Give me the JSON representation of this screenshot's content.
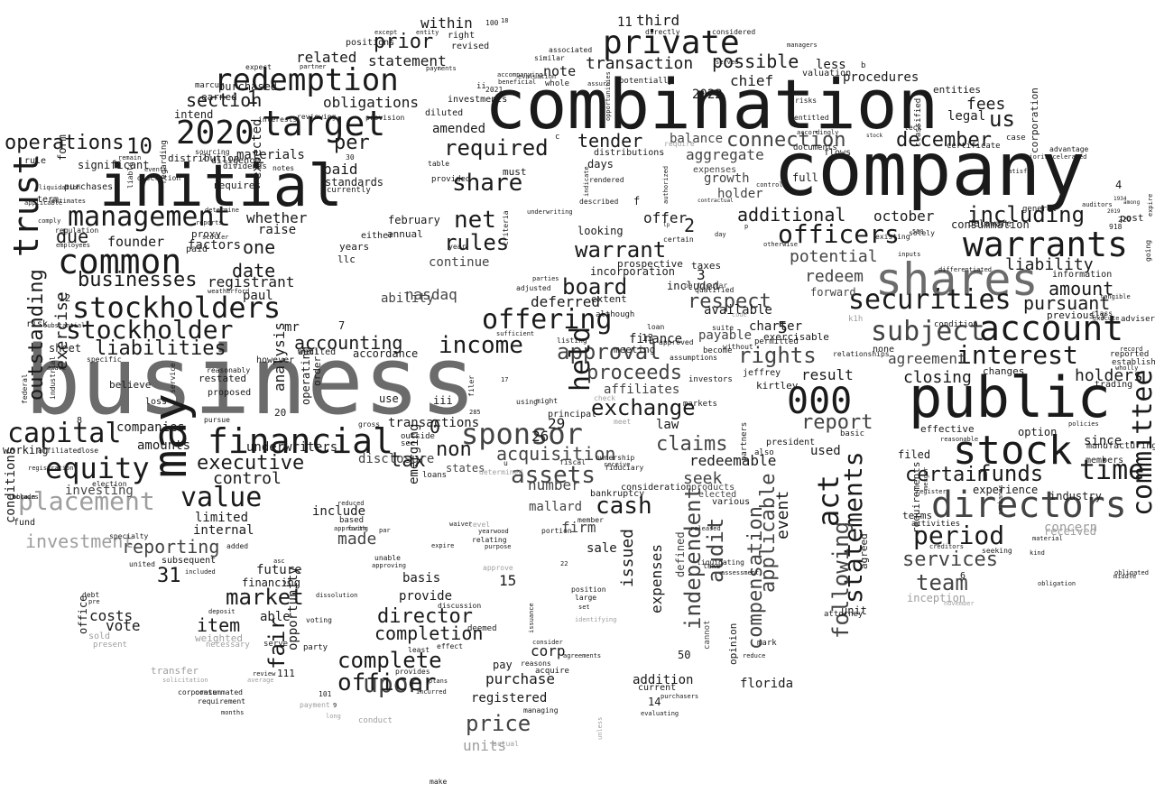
{
  "palette": {
    "black": "#1a1a1a",
    "dark": "#444444",
    "mid": "#6b6b6b",
    "light": "#9e9e9e",
    "pale": "#c4c4c4"
  },
  "words": [
    "combination",
    "company",
    "business",
    "public",
    "initial",
    "shares",
    "warrants",
    "stock",
    "directors",
    "may",
    "private",
    "trust",
    "account",
    "redemption",
    "target",
    "2020",
    "common",
    "financial",
    "management",
    "stockholders",
    "offering",
    "securities",
    "sponsor",
    "000",
    "officers",
    "equity",
    "capital",
    "value",
    "placement",
    "operations",
    "interest",
    "assets",
    "subject",
    "exchange",
    "income",
    "stockholder",
    "liabilities",
    "statements",
    "approval",
    "committee",
    "act",
    "compensation",
    "applicable",
    "period",
    "team",
    "services",
    "funds",
    "certain",
    "time",
    "including",
    "tender",
    "december",
    "connection",
    "share",
    "net",
    "rules",
    "warrant",
    "board",
    "held",
    "claims",
    "acquisition",
    "cash",
    "price",
    "upon",
    "complete",
    "officer",
    "director",
    "completion",
    "market",
    "fair",
    "item",
    "reporting",
    "executive",
    "control",
    "report",
    "proceeds",
    "respect",
    "rights",
    "audit",
    "independent",
    "following",
    "investment",
    "outstanding",
    "exercise",
    "businesses",
    "prior",
    "transaction",
    "possible",
    "chief",
    "required",
    "additional",
    "aggregate",
    "offer",
    "deferred",
    "tax",
    "non",
    "date",
    "one",
    "per",
    "paid",
    "due",
    "founder",
    "whether",
    "registrant",
    "accounting",
    "section",
    "obligations",
    "related",
    "statement",
    "within",
    "third",
    "note",
    "fees",
    "us",
    "liability",
    "amount",
    "pursuant",
    "holders",
    "closing",
    "agreement",
    "potential",
    "redeem",
    "october",
    "consummation",
    "filed",
    "since",
    "experience",
    "inception",
    "event",
    "issued",
    "expenses",
    "costs",
    "vote",
    "31",
    "10",
    "2",
    "1",
    "3",
    "5",
    "15",
    "29",
    "26",
    "0",
    "redeemable",
    "seek",
    "number",
    "mallard",
    "firm",
    "sale",
    "purchase",
    "registered",
    "units",
    "provide",
    "basis",
    "future",
    "limited",
    "companies",
    "amounts",
    "underwriters",
    "nasdaq",
    "ability",
    "affiliates",
    "law",
    "result",
    "used",
    "procedures",
    "less",
    "entities",
    "legal",
    "growth",
    "holder",
    "days",
    "distributions",
    "balance",
    "amended",
    "investments",
    "diluted",
    "significant",
    "form",
    "rule",
    "term",
    "purchases",
    "conditions",
    "working",
    "fund",
    "risk",
    "sheet",
    "believe",
    "loss",
    "restated",
    "proposed",
    "analysis",
    "operating",
    "order",
    "accordance",
    "transactions",
    "use",
    "principal",
    "president",
    "also",
    "partners",
    "payable",
    "available",
    "extent",
    "meeting",
    "looking",
    "prospective",
    "incorporation",
    "taxes",
    "included",
    "corp",
    "pay",
    "addition",
    "current",
    "opinion",
    "include",
    "made",
    "based",
    "subsequent",
    "internal",
    "financing",
    "able",
    "opportunity",
    "party",
    "voting",
    "office",
    "sold",
    "present",
    "transfer",
    "weighted",
    "necessary",
    "continue",
    "february",
    "annual",
    "llc",
    "years",
    "either",
    "raise",
    "materials",
    "standards",
    "currently",
    "expected",
    "proxy",
    "paid",
    "intend",
    "purchased",
    "distribution",
    "marcum",
    "earned",
    "factors",
    "paul",
    "mr",
    "however",
    "well",
    "audited",
    "investing",
    "states",
    "disclosure",
    "emerging",
    "loans",
    "sec",
    "outside",
    "received",
    "unit",
    "attorney",
    "agreed",
    "basic",
    "requirements",
    "terms",
    "activities",
    "industry",
    "manufacturing",
    "members",
    "option",
    "effective",
    "changes",
    "previously",
    "information",
    "trading",
    "reported",
    "established",
    "post",
    "class",
    "case",
    "corporation",
    "general",
    "delaware",
    "solely",
    "existing",
    "classified",
    "relationships",
    "none",
    "condition",
    "inputs",
    "flows",
    "risks",
    "entitled",
    "documents",
    "valuation",
    "managers",
    "considered",
    "directly",
    "right",
    "revised",
    "positions",
    "partner",
    "expect",
    "except",
    "entity",
    "associated",
    "similar",
    "evaluation",
    "whole",
    "assure",
    "potentially",
    "accompanying",
    "beneficial",
    "payments",
    "provision",
    "interests",
    "reviewing",
    "remain",
    "liable",
    "discretion",
    "events",
    "sourcing",
    "regarding",
    "diligence",
    "requires",
    "dividends",
    "notes",
    "30",
    "must",
    "table",
    "provided",
    "rendered",
    "underwriting",
    "criteria",
    "year",
    "parties",
    "adjusted",
    "listing",
    "although",
    "loan",
    "approved",
    "assumptions",
    "become",
    "qualified",
    "suite",
    "without",
    "exercisable",
    "permitted",
    "jeffrey",
    "kirtley",
    "investors",
    "markets",
    "meet",
    "check",
    "fiduciary",
    "ownership",
    "receive",
    "consideration",
    "bankruptcy",
    "fiscal",
    "might",
    "using",
    "filer",
    "sufficient",
    "gross",
    "pursue",
    "reasonably",
    "service",
    "aware",
    "specific",
    "substantial",
    "federal",
    "industrial",
    "affiliated",
    "close",
    "registration",
    "election",
    "specialty",
    "added",
    "included",
    "united",
    "debt",
    "pre",
    "reduced",
    "forth",
    "unable",
    "approving",
    "expire",
    "relating",
    "purpose",
    "approve",
    "level",
    "waiver",
    "yearwood",
    "determined",
    "member",
    "set",
    "identifying",
    "position",
    "portion",
    "large",
    "reasons",
    "actual",
    "make",
    "unless",
    "managing",
    "least",
    "effect",
    "provides",
    "incurred",
    "plans",
    "deemed",
    "discussion",
    "dissolution",
    "deposit",
    "review",
    "average",
    "solicitation",
    "requirement",
    "months",
    "corporate",
    "consummated",
    "payment",
    "long",
    "101",
    "9",
    "conduct",
    "acquire",
    "agreements",
    "consider",
    "issuance",
    "evaluating",
    "purchasers",
    "reduce",
    "mark",
    "florida",
    "charter",
    "finance",
    "13",
    "50",
    "14",
    "111",
    "20",
    "4",
    "6",
    "7",
    "8",
    "12",
    "27",
    "18",
    "11",
    "17",
    "22",
    "25",
    "100",
    "220",
    "285",
    "500",
    "918",
    "1934",
    "2019",
    "2021",
    "2022",
    "ii",
    "iii",
    "u",
    "b",
    "c",
    "f",
    "p",
    "k1h",
    "leck",
    "sculler",
    "weatherford",
    "employees",
    "determine",
    "reports",
    "comply",
    "regulation",
    "estimates",
    "liquidation",
    "applicable",
    "obtain",
    "includes",
    "serve",
    "par",
    "asc",
    "approving",
    "going",
    "expire",
    "wholly",
    "tangible",
    "differentiated",
    "satisfy",
    "majority",
    "accelerated",
    "advantage",
    "auditors",
    "among",
    "execute",
    "record",
    "policies",
    "reasonable",
    "register",
    "merger",
    "creditors",
    "seeking",
    "middle",
    "obligated",
    "material",
    "kind",
    "sarbanes",
    "obligation",
    "november",
    "concern",
    "adviser",
    "certificate",
    "stock",
    "certain",
    "authorized",
    "released",
    "liquidating",
    "take",
    "assessment",
    "day",
    "lp",
    "contractual",
    "products",
    "elected",
    "various",
    "cannot",
    "defined",
    "served",
    "controls",
    "expenses",
    "accordingly",
    "full",
    "otherwise",
    "particular",
    "forward",
    "code",
    "require",
    "described",
    "indicate",
    "opportunities",
    "significantly",
    "equal",
    "independently"
  ]
}
